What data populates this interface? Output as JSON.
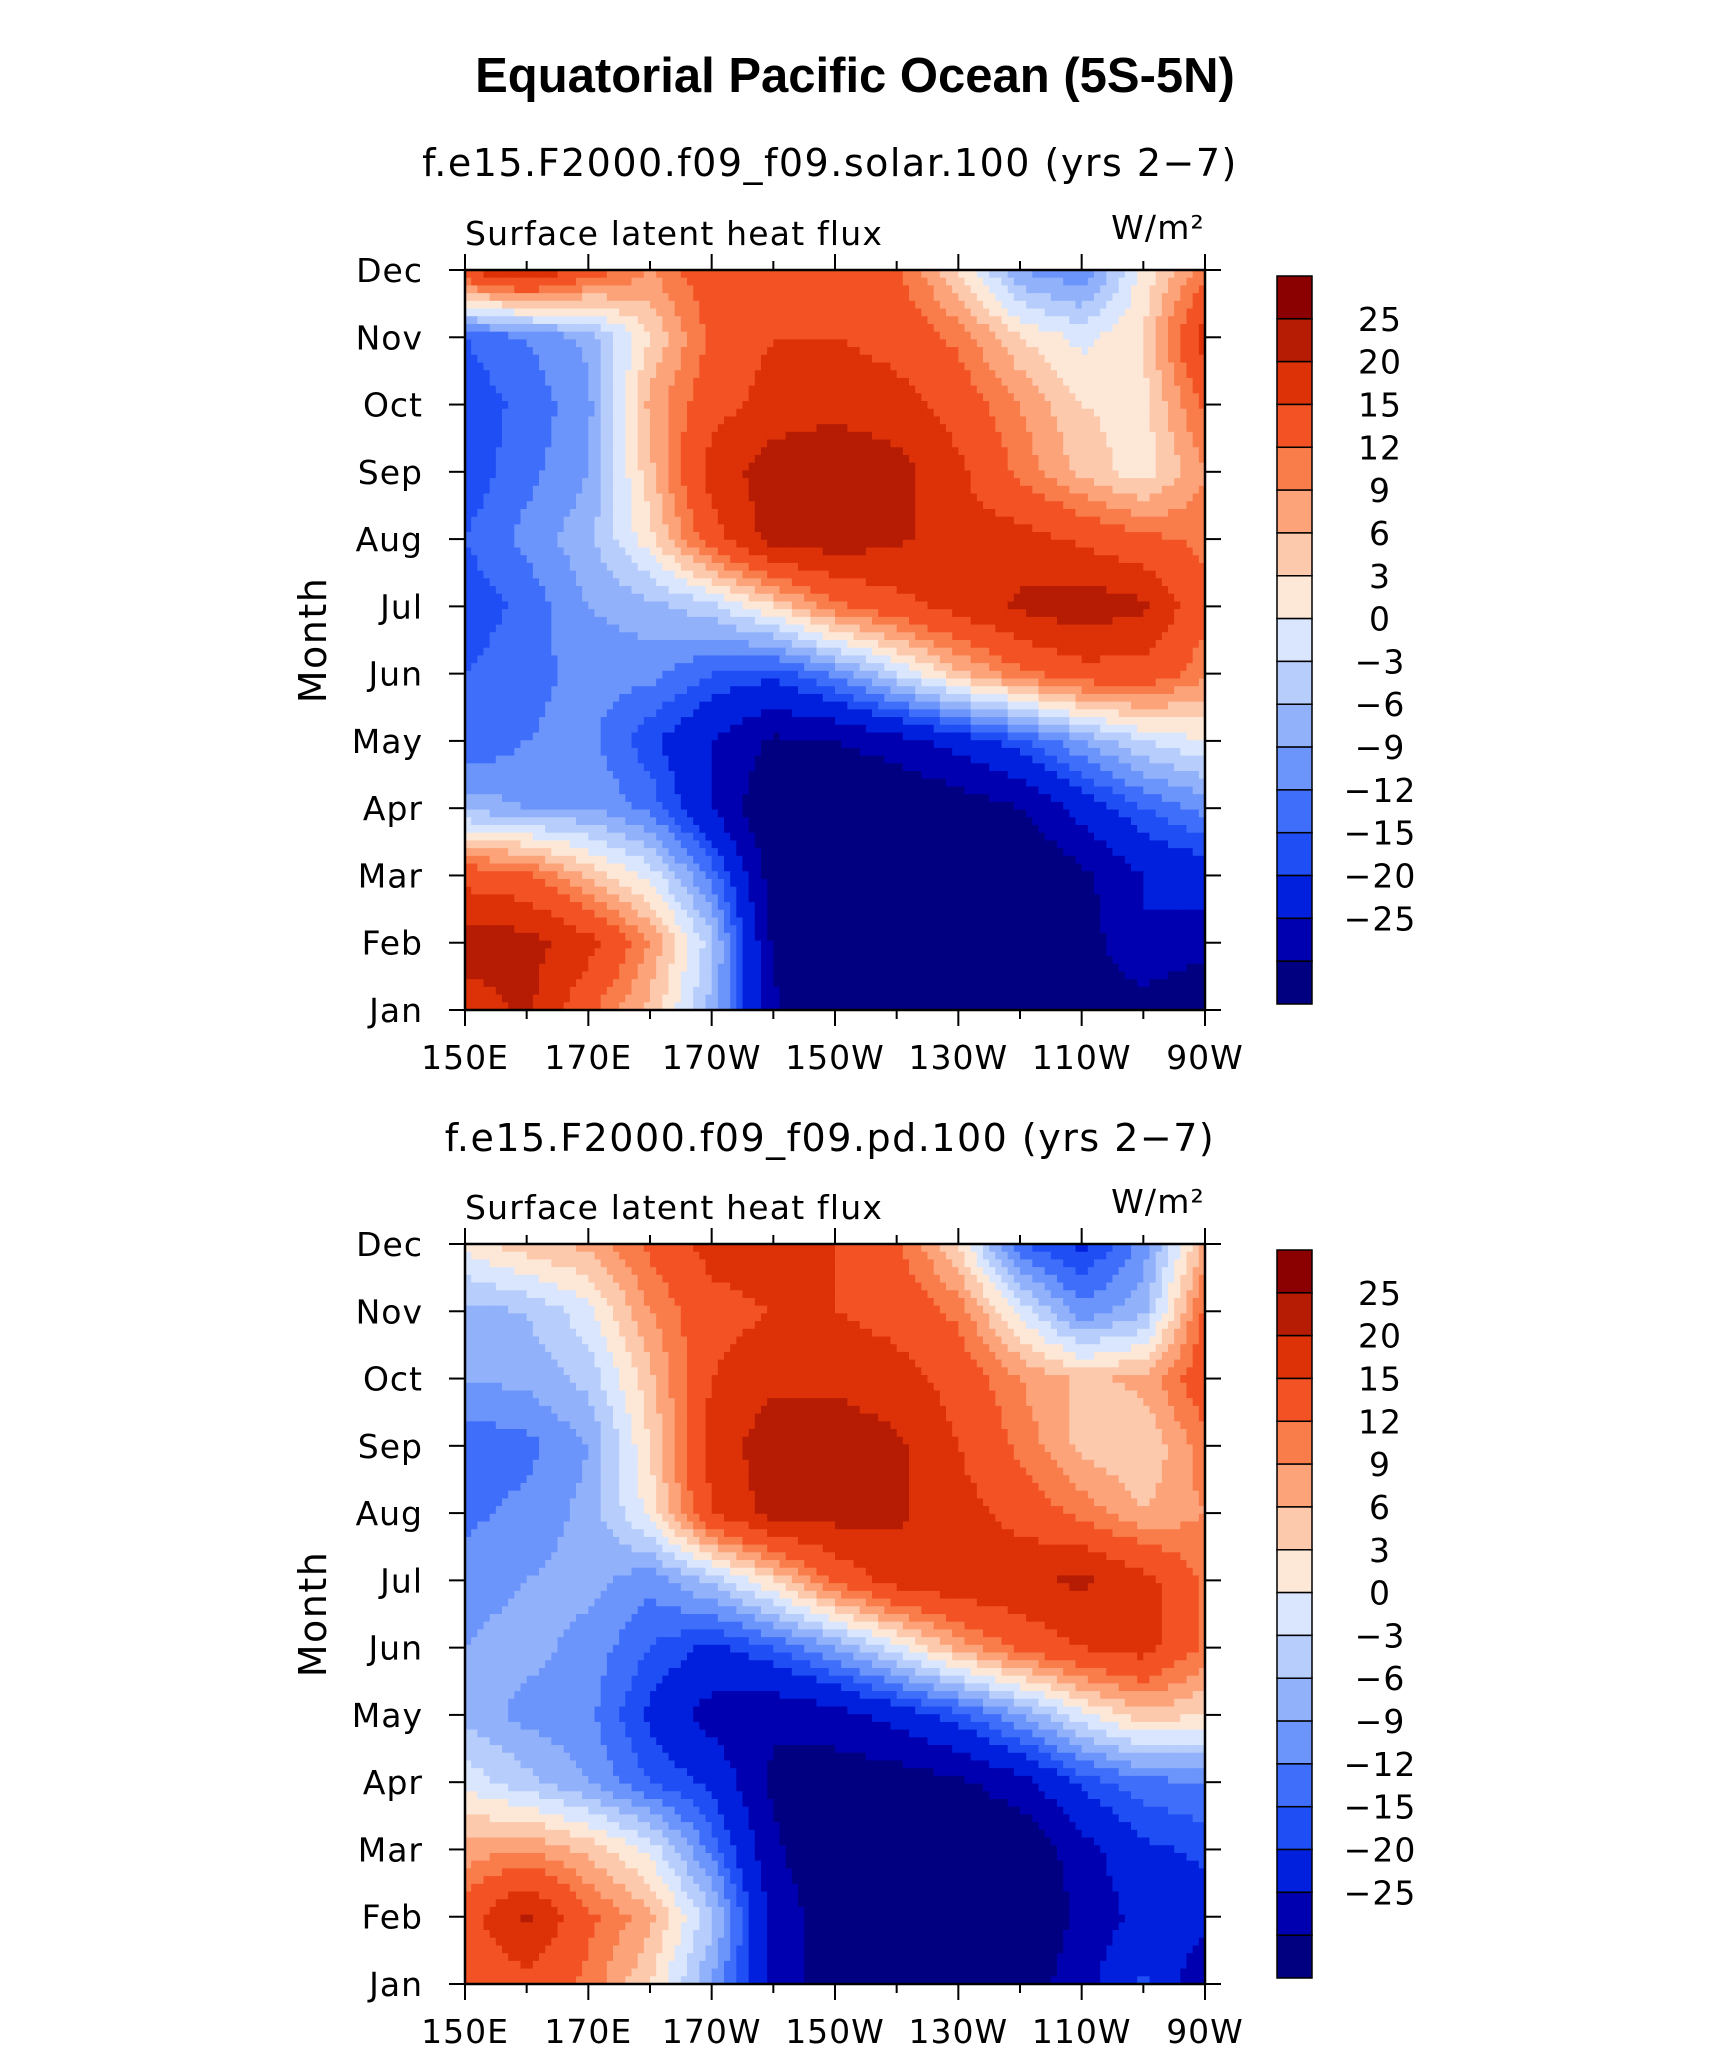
{
  "figure": {
    "title": "Equatorial Pacific Ocean (5S-5N)"
  },
  "colors": [
    "#000080",
    "#0000b0",
    "#0020dd",
    "#1f4ef5",
    "#3f6ffa",
    "#6c95fb",
    "#92b1fb",
    "#b7cdfc",
    "#d9e6fd",
    "#fde8d8",
    "#fdc9ac",
    "#fca37a",
    "#f97c4b",
    "#f35324",
    "#dd3108",
    "#b51c03",
    "#8b0000"
  ],
  "chart_data": [
    {
      "type": "heatmap",
      "title": "f.e15.F2000.f09_f09.solar.100 (yrs 2-7)",
      "subtitle": "Surface latent heat flux",
      "units": "W/m²",
      "ylabel": "Month",
      "xlabel": "",
      "x_ticks": [
        "150E",
        "170E",
        "170W",
        "150W",
        "130W",
        "110W",
        "90W"
      ],
      "x_values": [
        150,
        160,
        170,
        180,
        190,
        200,
        210,
        220,
        230,
        240,
        250,
        260,
        270
      ],
      "x_range": [
        150,
        270
      ],
      "y_ticks": [
        "Jan",
        "Feb",
        "Mar",
        "Apr",
        "May",
        "Jun",
        "Jul",
        "Aug",
        "Sep",
        "Oct",
        "Nov",
        "Dec"
      ],
      "contour_levels": [
        -25,
        -20,
        -15,
        -12,
        -9,
        -6,
        -3,
        0,
        3,
        6,
        9,
        12,
        15,
        20,
        25
      ],
      "values": [
        [
          22,
          26,
          16,
          8,
          -4,
          -24,
          -30,
          -30,
          -30,
          -26,
          -27,
          -28,
          -32
        ],
        [
          28,
          27,
          22,
          12,
          -2,
          -26,
          -32,
          -32,
          -32,
          -32,
          -28,
          -20,
          -22
        ],
        [
          18,
          16,
          8,
          2,
          -10,
          -28,
          -32,
          -32,
          -32,
          -32,
          -26,
          -20,
          -18
        ],
        [
          -4,
          -6,
          -6,
          -10,
          -20,
          -30,
          -31,
          -31,
          -28,
          -25,
          -18,
          -12,
          -8
        ],
        [
          -12,
          -9,
          -8,
          -14,
          -20,
          -26,
          -25,
          -22,
          -18,
          -13,
          -6,
          0,
          3
        ],
        [
          -12,
          -10,
          -8,
          -8,
          -12,
          -14,
          -8,
          0,
          8,
          14,
          18,
          18,
          13
        ],
        [
          -14,
          -11,
          -6,
          -4,
          -1,
          6,
          14,
          18,
          22,
          26,
          28,
          26,
          16
        ],
        [
          -12,
          -8,
          -4,
          5,
          18,
          27,
          28,
          26,
          22,
          22,
          19,
          16,
          14
        ],
        [
          -14,
          -10,
          -6,
          8,
          22,
          28,
          28,
          27,
          21,
          14,
          8,
          4,
          12
        ],
        [
          -14,
          -11,
          -7,
          10,
          18,
          22,
          24,
          22,
          18,
          12,
          6,
          5,
          16
        ],
        [
          -12,
          -9,
          -5,
          6,
          16,
          20,
          20,
          18,
          14,
          6,
          2,
          6,
          22
        ],
        [
          20,
          26,
          18,
          12,
          18,
          18,
          18,
          16,
          6,
          -6,
          -9,
          4,
          14
        ]
      ]
    },
    {
      "type": "heatmap",
      "title": "f.e15.F2000.f09_f09.pd.100 (yrs 2-7)",
      "subtitle": "Surface latent heat flux",
      "units": "W/m²",
      "ylabel": "Month",
      "xlabel": "",
      "x_ticks": [
        "150E",
        "170E",
        "170W",
        "150W",
        "130W",
        "110W",
        "90W"
      ],
      "x_values": [
        150,
        160,
        170,
        180,
        190,
        200,
        210,
        220,
        230,
        240,
        250,
        260,
        270
      ],
      "x_range": [
        150,
        270
      ],
      "y_ticks": [
        "Jan",
        "Feb",
        "Mar",
        "Apr",
        "May",
        "Jun",
        "Jul",
        "Aug",
        "Sep",
        "Oct",
        "Nov",
        "Dec"
      ],
      "contour_levels": [
        -25,
        -20,
        -15,
        -12,
        -9,
        -6,
        -3,
        0,
        3,
        6,
        9,
        12,
        15,
        20,
        25
      ],
      "values": [
        [
          16,
          18,
          14,
          6,
          -6,
          -22,
          -28,
          -29,
          -30,
          -28,
          -22,
          -14,
          -24
        ],
        [
          18,
          26,
          16,
          10,
          -2,
          -22,
          -28,
          -30,
          -30,
          -30,
          -24,
          -18,
          -18
        ],
        [
          10,
          12,
          8,
          2,
          -10,
          -24,
          -30,
          -30,
          -30,
          -30,
          -22,
          -16,
          -14
        ],
        [
          2,
          -2,
          -6,
          -12,
          -16,
          -26,
          -28,
          -28,
          -26,
          -22,
          -14,
          -10,
          -9
        ],
        [
          -4,
          -7,
          -8,
          -16,
          -22,
          -24,
          -22,
          -18,
          -13,
          -6,
          2,
          8,
          6
        ],
        [
          -6,
          -5,
          -7,
          -12,
          -16,
          -12,
          -6,
          2,
          10,
          16,
          20,
          22,
          14
        ],
        [
          -7,
          -6,
          -5,
          -8,
          -2,
          6,
          16,
          22,
          24,
          24,
          26,
          22,
          14
        ],
        [
          -10,
          -8,
          -5,
          4,
          20,
          27,
          27,
          26,
          22,
          18,
          14,
          9,
          12
        ],
        [
          -11,
          -10,
          -6,
          6,
          22,
          28,
          28,
          26,
          20,
          14,
          8,
          6,
          14
        ],
        [
          -6,
          -5,
          -2,
          8,
          20,
          24,
          24,
          22,
          18,
          12,
          8,
          10,
          18
        ],
        [
          -4,
          -3,
          2,
          12,
          18,
          20,
          20,
          18,
          14,
          2,
          -8,
          -4,
          16
        ],
        [
          4,
          8,
          10,
          16,
          22,
          24,
          20,
          16,
          6,
          -12,
          -16,
          -8,
          10
        ]
      ]
    }
  ]
}
